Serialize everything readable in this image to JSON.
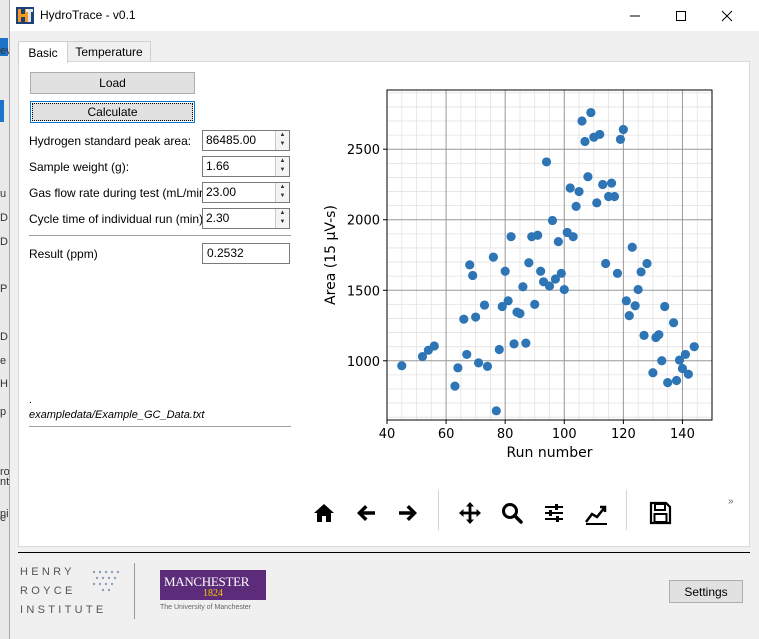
{
  "window": {
    "title": "HydroTrace - v0.1"
  },
  "left_strip": {
    "glyphs": [
      "ev",
      "u",
      "D",
      "D",
      "P",
      "D",
      "e",
      "H",
      "p",
      "ro",
      "nt",
      "ni",
      "e"
    ]
  },
  "tabs": [
    {
      "label": "Basic"
    },
    {
      "label": "Temperature"
    }
  ],
  "buttons": {
    "load": "Load",
    "calculate": "Calculate",
    "settings": "Settings"
  },
  "form": {
    "fields": [
      {
        "label": "Hydrogen standard peak area:",
        "value": "86485.00"
      },
      {
        "label": "Sample weight (g):",
        "value": "1.66"
      },
      {
        "label": "Gas flow rate during test (mL/min):",
        "value": "23.00"
      },
      {
        "label": "Cycle time of individual run (min):",
        "value": "2.30"
      }
    ],
    "result_label": "Result (ppm)",
    "result_value": "0.2532",
    "dot": ".",
    "file_path": "exampledata/Example_GC_Data.txt"
  },
  "toolbar": {
    "icons": [
      "home-icon",
      "back-arrow-icon",
      "forward-arrow-icon",
      "pan-icon",
      "zoom-icon",
      "configure-subplots-icon",
      "edit-axis-icon",
      "save-icon"
    ],
    "overflow": "»"
  },
  "footer": {
    "hri_lines": [
      "HENRY",
      "ROYCE",
      "INSTITUTE"
    ],
    "uom_name": "MANCHESTER",
    "uom_year": "1824",
    "uom_sub": "The University of Manchester"
  },
  "colors": {
    "accent": "#0078d7",
    "marker": "#2e75b6",
    "uom_purple": "#5c2b7a",
    "uom_gold": "#f7c300"
  },
  "chart_data": {
    "type": "scatter",
    "title": "",
    "xlabel": "Run number",
    "ylabel": "Area (15 µV-s)",
    "xlim": [
      40,
      150
    ],
    "ylim": [
      580,
      2920
    ],
    "xticks": [
      40,
      60,
      80,
      100,
      120,
      140
    ],
    "yticks": [
      1000,
      1500,
      2000,
      2500
    ],
    "grid": "major and minor",
    "series": [
      {
        "points": [
          [
            45,
            965
          ],
          [
            52,
            1030
          ],
          [
            54,
            1075
          ],
          [
            56,
            1105
          ],
          [
            63,
            820
          ],
          [
            64,
            950
          ],
          [
            66,
            1295
          ],
          [
            67,
            1045
          ],
          [
            68,
            1680
          ],
          [
            69,
            1605
          ],
          [
            70,
            1310
          ],
          [
            71,
            985
          ],
          [
            73,
            1395
          ],
          [
            74,
            960
          ],
          [
            76,
            1735
          ],
          [
            77,
            645
          ],
          [
            78,
            1080
          ],
          [
            79,
            1385
          ],
          [
            80,
            1635
          ],
          [
            81,
            1425
          ],
          [
            82,
            1880
          ],
          [
            83,
            1120
          ],
          [
            84,
            1345
          ],
          [
            85,
            1335
          ],
          [
            86,
            1525
          ],
          [
            87,
            1125
          ],
          [
            88,
            1695
          ],
          [
            89,
            1880
          ],
          [
            90,
            1400
          ],
          [
            91,
            1890
          ],
          [
            92,
            1635
          ],
          [
            93,
            1560
          ],
          [
            94,
            2410
          ],
          [
            95,
            1530
          ],
          [
            96,
            1995
          ],
          [
            97,
            1580
          ],
          [
            98,
            1845
          ],
          [
            99,
            1620
          ],
          [
            100,
            1505
          ],
          [
            101,
            1910
          ],
          [
            102,
            2225
          ],
          [
            103,
            1880
          ],
          [
            104,
            2095
          ],
          [
            105,
            2200
          ],
          [
            106,
            2700
          ],
          [
            107,
            2555
          ],
          [
            108,
            2305
          ],
          [
            109,
            2760
          ],
          [
            110,
            2585
          ],
          [
            111,
            2120
          ],
          [
            112,
            2605
          ],
          [
            113,
            2250
          ],
          [
            114,
            1690
          ],
          [
            115,
            2165
          ],
          [
            116,
            2260
          ],
          [
            117,
            2165
          ],
          [
            118,
            1620
          ],
          [
            119,
            2570
          ],
          [
            120,
            2640
          ],
          [
            121,
            1425
          ],
          [
            122,
            1320
          ],
          [
            123,
            1805
          ],
          [
            124,
            1390
          ],
          [
            125,
            1505
          ],
          [
            126,
            1630
          ],
          [
            127,
            1180
          ],
          [
            128,
            1690
          ],
          [
            130,
            915
          ],
          [
            131,
            1165
          ],
          [
            132,
            1185
          ],
          [
            133,
            1000
          ],
          [
            134,
            1385
          ],
          [
            135,
            845
          ],
          [
            137,
            1270
          ],
          [
            138,
            860
          ],
          [
            139,
            1005
          ],
          [
            141,
            1045
          ],
          [
            142,
            905
          ],
          [
            144,
            1100
          ],
          [
            140,
            945
          ]
        ]
      }
    ]
  }
}
